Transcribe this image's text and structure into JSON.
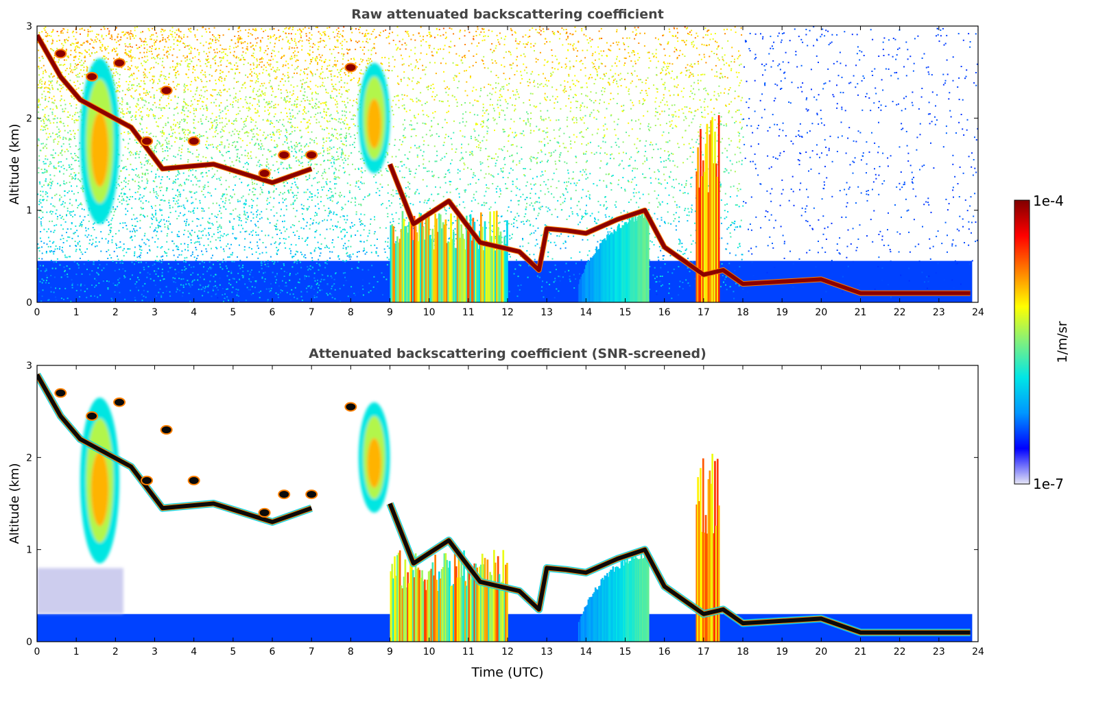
{
  "chart_data": [
    {
      "type": "heatmap",
      "title": "Raw attenuated backscattering coefficient",
      "xlabel": "",
      "ylabel": "Altitude (km)",
      "xlim": [
        0,
        24
      ],
      "ylim": [
        0,
        3
      ],
      "x_ticks": [
        "0",
        "1",
        "2",
        "3",
        "4",
        "5",
        "6",
        "7",
        "8",
        "9",
        "10",
        "11",
        "12",
        "13",
        "14",
        "15",
        "16",
        "17",
        "18",
        "19",
        "20",
        "21",
        "22",
        "23",
        "24"
      ],
      "y_ticks": [
        "0",
        "1",
        "2",
        "3"
      ],
      "grid": false,
      "screened": false,
      "background_noise": [
        {
          "t": [
            0,
            8
          ],
          "level": "high"
        },
        {
          "t": [
            8,
            18
          ],
          "level": "medium"
        },
        {
          "t": [
            18,
            24
          ],
          "level": "sparse"
        }
      ],
      "features": [
        {
          "kind": "boundary_layer_base",
          "t": [
            0,
            9
          ],
          "top_km": 0.45,
          "color": "blue"
        },
        {
          "kind": "aerosol_plume",
          "t": [
            1.1,
            2.1
          ],
          "alt_km": [
            0.85,
            2.65
          ],
          "peak": "orange-yellow"
        },
        {
          "kind": "aerosol_plume",
          "t": [
            8.2,
            9.0
          ],
          "alt_km": [
            1.4,
            2.6
          ],
          "peak": "orange"
        },
        {
          "kind": "descending_cloud_layer",
          "points": [
            [
              0,
              2.9
            ],
            [
              0.6,
              2.45
            ],
            [
              1.1,
              2.2
            ],
            [
              2.4,
              1.9
            ],
            [
              3.2,
              1.45
            ],
            [
              4.5,
              1.5
            ],
            [
              6.0,
              1.3
            ],
            [
              7.0,
              1.45
            ]
          ],
          "color": "darkred"
        },
        {
          "kind": "cloud_fragments",
          "points": [
            [
              0.6,
              2.7
            ],
            [
              1.4,
              2.45
            ],
            [
              2.1,
              2.6
            ],
            [
              2.8,
              1.75
            ],
            [
              3.3,
              2.3
            ],
            [
              4.0,
              1.75
            ],
            [
              5.8,
              1.4
            ],
            [
              6.3,
              1.6
            ],
            [
              7.0,
              1.6
            ],
            [
              8.0,
              2.55
            ]
          ],
          "color": "darkred"
        },
        {
          "kind": "low_cloud_layer",
          "points": [
            [
              9.0,
              1.5
            ],
            [
              9.6,
              0.85
            ],
            [
              10.5,
              1.1
            ],
            [
              11.3,
              0.65
            ],
            [
              12.3,
              0.55
            ],
            [
              12.8,
              0.35
            ],
            [
              13.0,
              0.8
            ],
            [
              13.5,
              0.78
            ],
            [
              14.0,
              0.75
            ],
            [
              14.8,
              0.9
            ],
            [
              15.5,
              1.0
            ],
            [
              16.0,
              0.6
            ],
            [
              17.0,
              0.3
            ],
            [
              17.5,
              0.35
            ],
            [
              18.0,
              0.2
            ],
            [
              20.0,
              0.25
            ],
            [
              21.0,
              0.1
            ],
            [
              23.8,
              0.1
            ]
          ],
          "color": "darkred"
        },
        {
          "kind": "precipitation_columns",
          "t": [
            9.0,
            12.0
          ],
          "alt_km": [
            0,
            1.0
          ],
          "color": "orange"
        },
        {
          "kind": "convective_column",
          "t": [
            16.8,
            17.4
          ],
          "alt_km": [
            0,
            2.1
          ],
          "color": "orange"
        },
        {
          "kind": "dome",
          "t": [
            13.8,
            15.6
          ],
          "alt_km": [
            0,
            1.0
          ],
          "color": "cyan-blue"
        }
      ]
    },
    {
      "type": "heatmap",
      "title": "Attenuated backscattering coefficient (SNR-screened)",
      "xlabel": "Time (UTC)",
      "ylabel": "Altitude (km)",
      "xlim": [
        0,
        24
      ],
      "ylim": [
        0,
        3
      ],
      "x_ticks": [
        "0",
        "1",
        "2",
        "3",
        "4",
        "5",
        "6",
        "7",
        "8",
        "9",
        "10",
        "11",
        "12",
        "13",
        "14",
        "15",
        "16",
        "17",
        "18",
        "19",
        "20",
        "21",
        "22",
        "23",
        "24"
      ],
      "y_ticks": [
        "0",
        "1",
        "2",
        "3"
      ],
      "grid": false,
      "screened": true,
      "features": "same as raw panel with low-SNR pixels removed; cloud cores appear black"
    }
  ],
  "colorbar": {
    "label": "1/m/sr",
    "max_label": "1e-4",
    "min_label": "1e-7",
    "scale": "log",
    "colormap": [
      "#e6e6f5",
      "#0000ff",
      "#0096ff",
      "#00e6e6",
      "#7ff07f",
      "#ffff00",
      "#ff8000",
      "#ff0000",
      "#800000"
    ]
  }
}
